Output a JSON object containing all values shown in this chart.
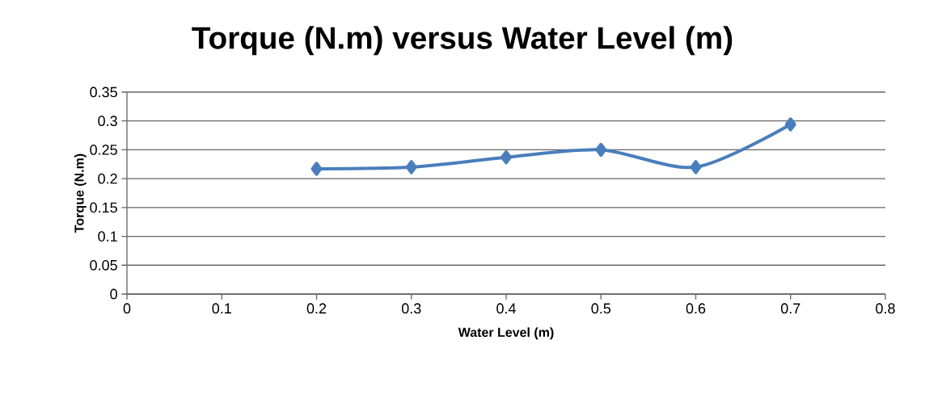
{
  "chart_data": {
    "type": "line",
    "title": "Torque (N.m) versus Water Level (m)",
    "xlabel": "Water Level (m)",
    "ylabel": "Torque (N.m)",
    "x": [
      0.2,
      0.3,
      0.4,
      0.5,
      0.6,
      0.7
    ],
    "series": [
      {
        "color": "#4a7ebb",
        "values": [
          0.217,
          0.22,
          0.237,
          0.25,
          0.22,
          0.294
        ]
      }
    ],
    "xlim": [
      0,
      0.8
    ],
    "xticks": [
      0,
      0.1,
      0.2,
      0.3,
      0.4,
      0.5,
      0.6,
      0.7,
      0.8
    ],
    "ylim": [
      0,
      0.35
    ],
    "yticks": [
      0,
      0.05,
      0.1,
      0.15,
      0.2,
      0.25,
      0.3,
      0.35
    ],
    "grid": "y",
    "marker": "diamond",
    "line_style": "solid"
  }
}
